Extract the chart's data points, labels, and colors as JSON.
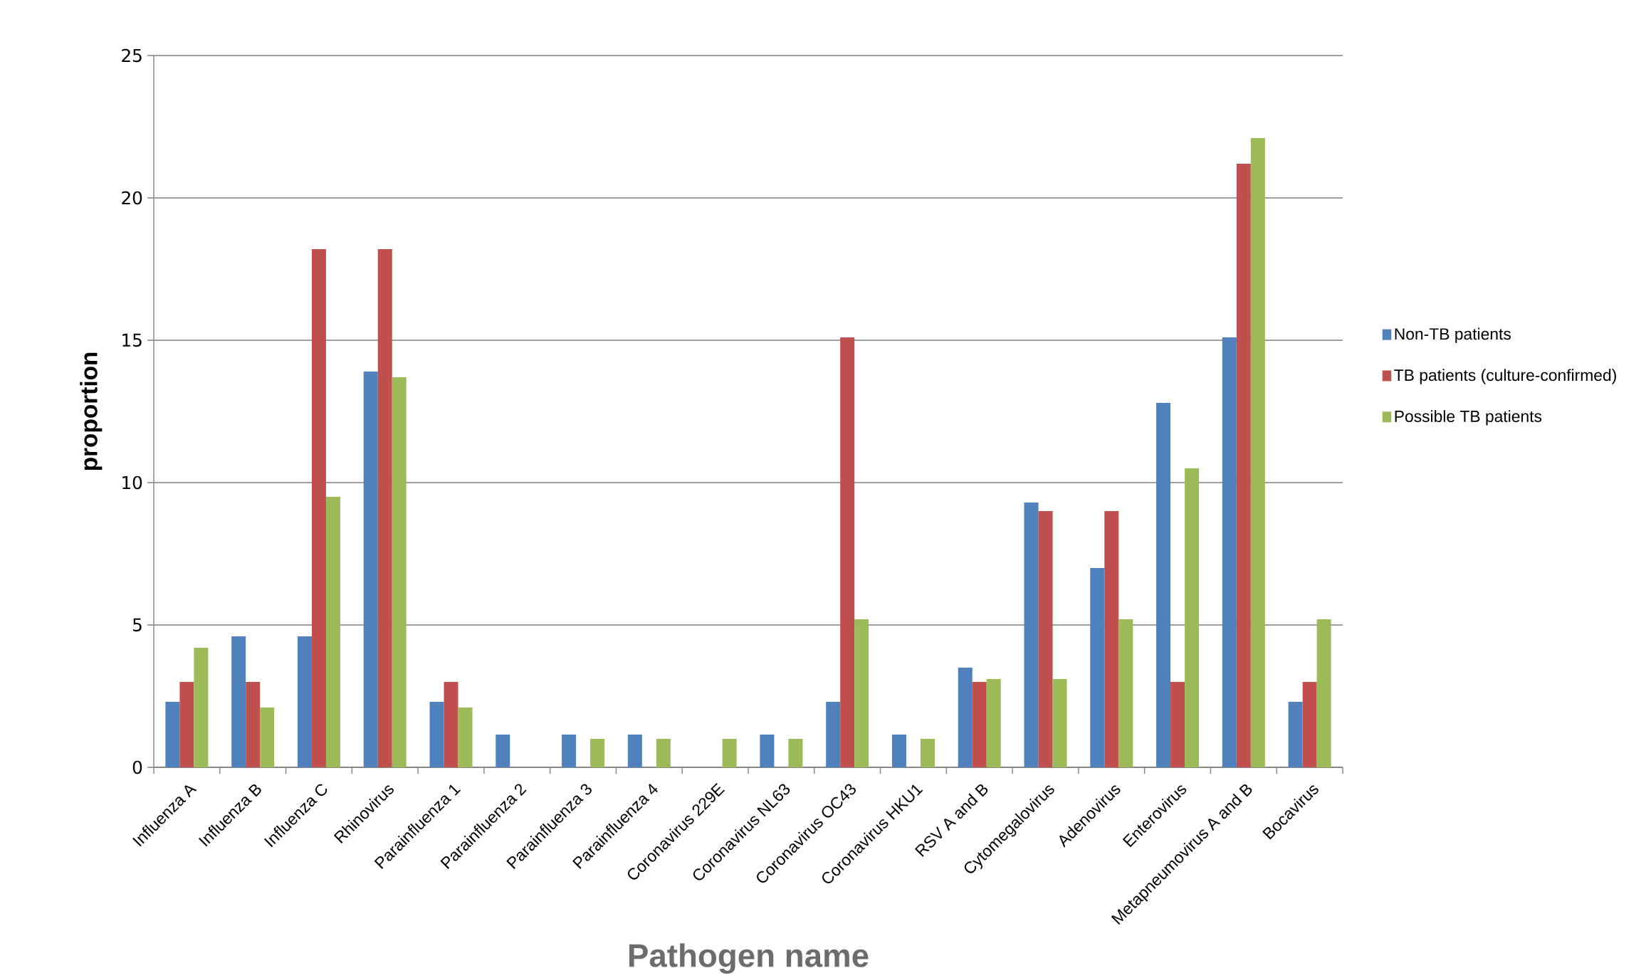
{
  "chart_data": {
    "type": "bar",
    "xlabel": "Pathogen name",
    "ylabel": "proportion",
    "categories": [
      "Influenza A",
      "Influenza B",
      "Influenza C",
      "Rhinovirus",
      "Parainfluenza 1",
      "Parainfluenza 2",
      "Parainfluenza 3",
      "Parainfluenza 4",
      "Coronavirus 229E",
      "Coronavirus NL63",
      "Coronavirus OC43",
      "Coronavirus HKU1",
      "RSV A and B",
      "Cytomegalovirus",
      "Adenovirus",
      "Enterovirus",
      "Metapneumovirus A and B",
      "Bocavirus"
    ],
    "series": [
      {
        "name": "Non-TB patients",
        "color": "#4f81bd",
        "values": [
          2.3,
          4.6,
          4.6,
          13.9,
          2.3,
          1.15,
          1.15,
          1.15,
          0,
          1.15,
          2.3,
          1.15,
          3.5,
          9.3,
          7.0,
          12.8,
          15.1,
          2.3
        ]
      },
      {
        "name": "TB patients (culture-confirmed)",
        "color": "#c0504d",
        "values": [
          3.0,
          3.0,
          18.2,
          18.2,
          3.0,
          0,
          0,
          0,
          0,
          0,
          15.1,
          0,
          3.0,
          9.0,
          9.0,
          3.0,
          21.2,
          3.0
        ]
      },
      {
        "name": "Possible TB patients",
        "color": "#9bbb59",
        "values": [
          4.2,
          2.1,
          9.5,
          13.7,
          2.1,
          0,
          1.0,
          1.0,
          1.0,
          1.0,
          5.2,
          1.0,
          3.1,
          3.1,
          5.2,
          10.5,
          22.1,
          5.2
        ]
      }
    ],
    "ylim": [
      0,
      25
    ],
    "yticks": [
      0,
      5,
      10,
      15,
      20,
      25
    ],
    "grid": "y",
    "legend": "right"
  }
}
